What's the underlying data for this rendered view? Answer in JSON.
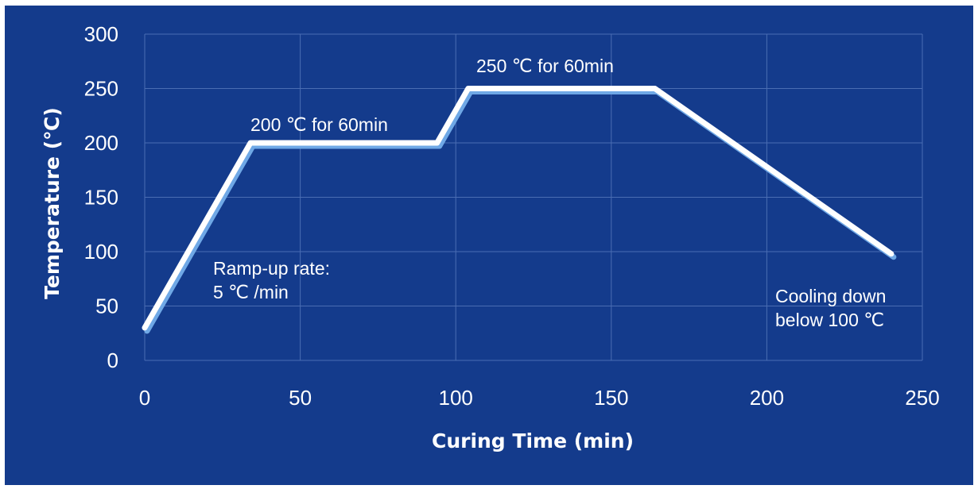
{
  "chart_data": {
    "type": "line",
    "xlabel": "Curing Time (min)",
    "ylabel": "Temperature (℃)",
    "xlim": [
      0,
      250
    ],
    "ylim": [
      0,
      300
    ],
    "x_ticks": [
      0,
      50,
      100,
      150,
      200,
      250
    ],
    "y_ticks": [
      0,
      50,
      100,
      150,
      200,
      250,
      300
    ],
    "grid": true,
    "series": [
      {
        "x": [
          0,
          34,
          94,
          104,
          164,
          240
        ],
        "y": [
          30,
          200,
          200,
          250,
          250,
          98
        ]
      }
    ],
    "annotations": [
      {
        "lines": [
          "200 ℃ for 60min"
        ]
      },
      {
        "lines": [
          "250 ℃ for 60min"
        ]
      },
      {
        "lines": [
          "Ramp-up rate:",
          "5  ℃ /min"
        ]
      },
      {
        "lines": [
          "Cooling down",
          "below 100 ℃"
        ]
      }
    ]
  },
  "colors": {
    "background": "#143b8c",
    "grid": "#4a6db3",
    "line": "#ffffff",
    "line_shadow": "#6fa8e6"
  }
}
